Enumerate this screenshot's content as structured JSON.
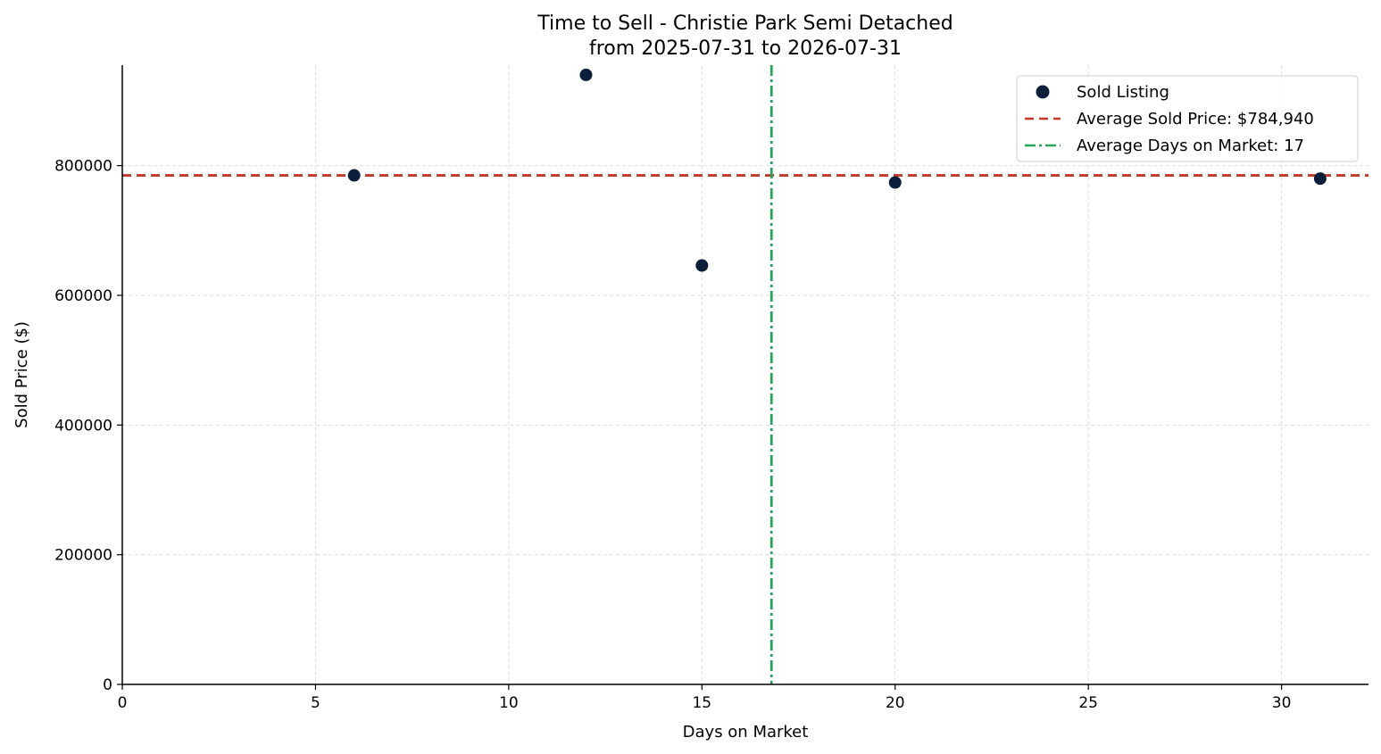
{
  "chart_data": {
    "type": "scatter",
    "title": "Time to Sell - Christie Park Semi Detached",
    "subtitle": "from 2025-07-31 to 2026-07-31",
    "xlabel": "Days on Market",
    "ylabel": "Sold Price ($)",
    "xlim": [
      0,
      32.25
    ],
    "ylim": [
      0,
      955000
    ],
    "xticks": [
      0,
      5,
      10,
      15,
      20,
      25,
      30
    ],
    "yticks": [
      0,
      200000,
      400000,
      600000,
      800000
    ],
    "grid": true,
    "legend_position": "top-right",
    "series": [
      {
        "name": "Sold Listing",
        "color": "#0b1f3a",
        "points": [
          {
            "x": 6,
            "y": 785000
          },
          {
            "x": 12,
            "y": 940000
          },
          {
            "x": 15,
            "y": 646000
          },
          {
            "x": 20,
            "y": 774000
          },
          {
            "x": 31,
            "y": 780000
          }
        ]
      }
    ],
    "reference_lines": [
      {
        "orientation": "horizontal",
        "value": 784940,
        "label": "Average Sold Price: $784,940",
        "color": "#c0392b",
        "style": "dashed"
      },
      {
        "orientation": "vertical",
        "value": 16.8,
        "label": "Average Days on Market: 17",
        "color": "#27a35a",
        "style": "dashdot"
      }
    ]
  }
}
